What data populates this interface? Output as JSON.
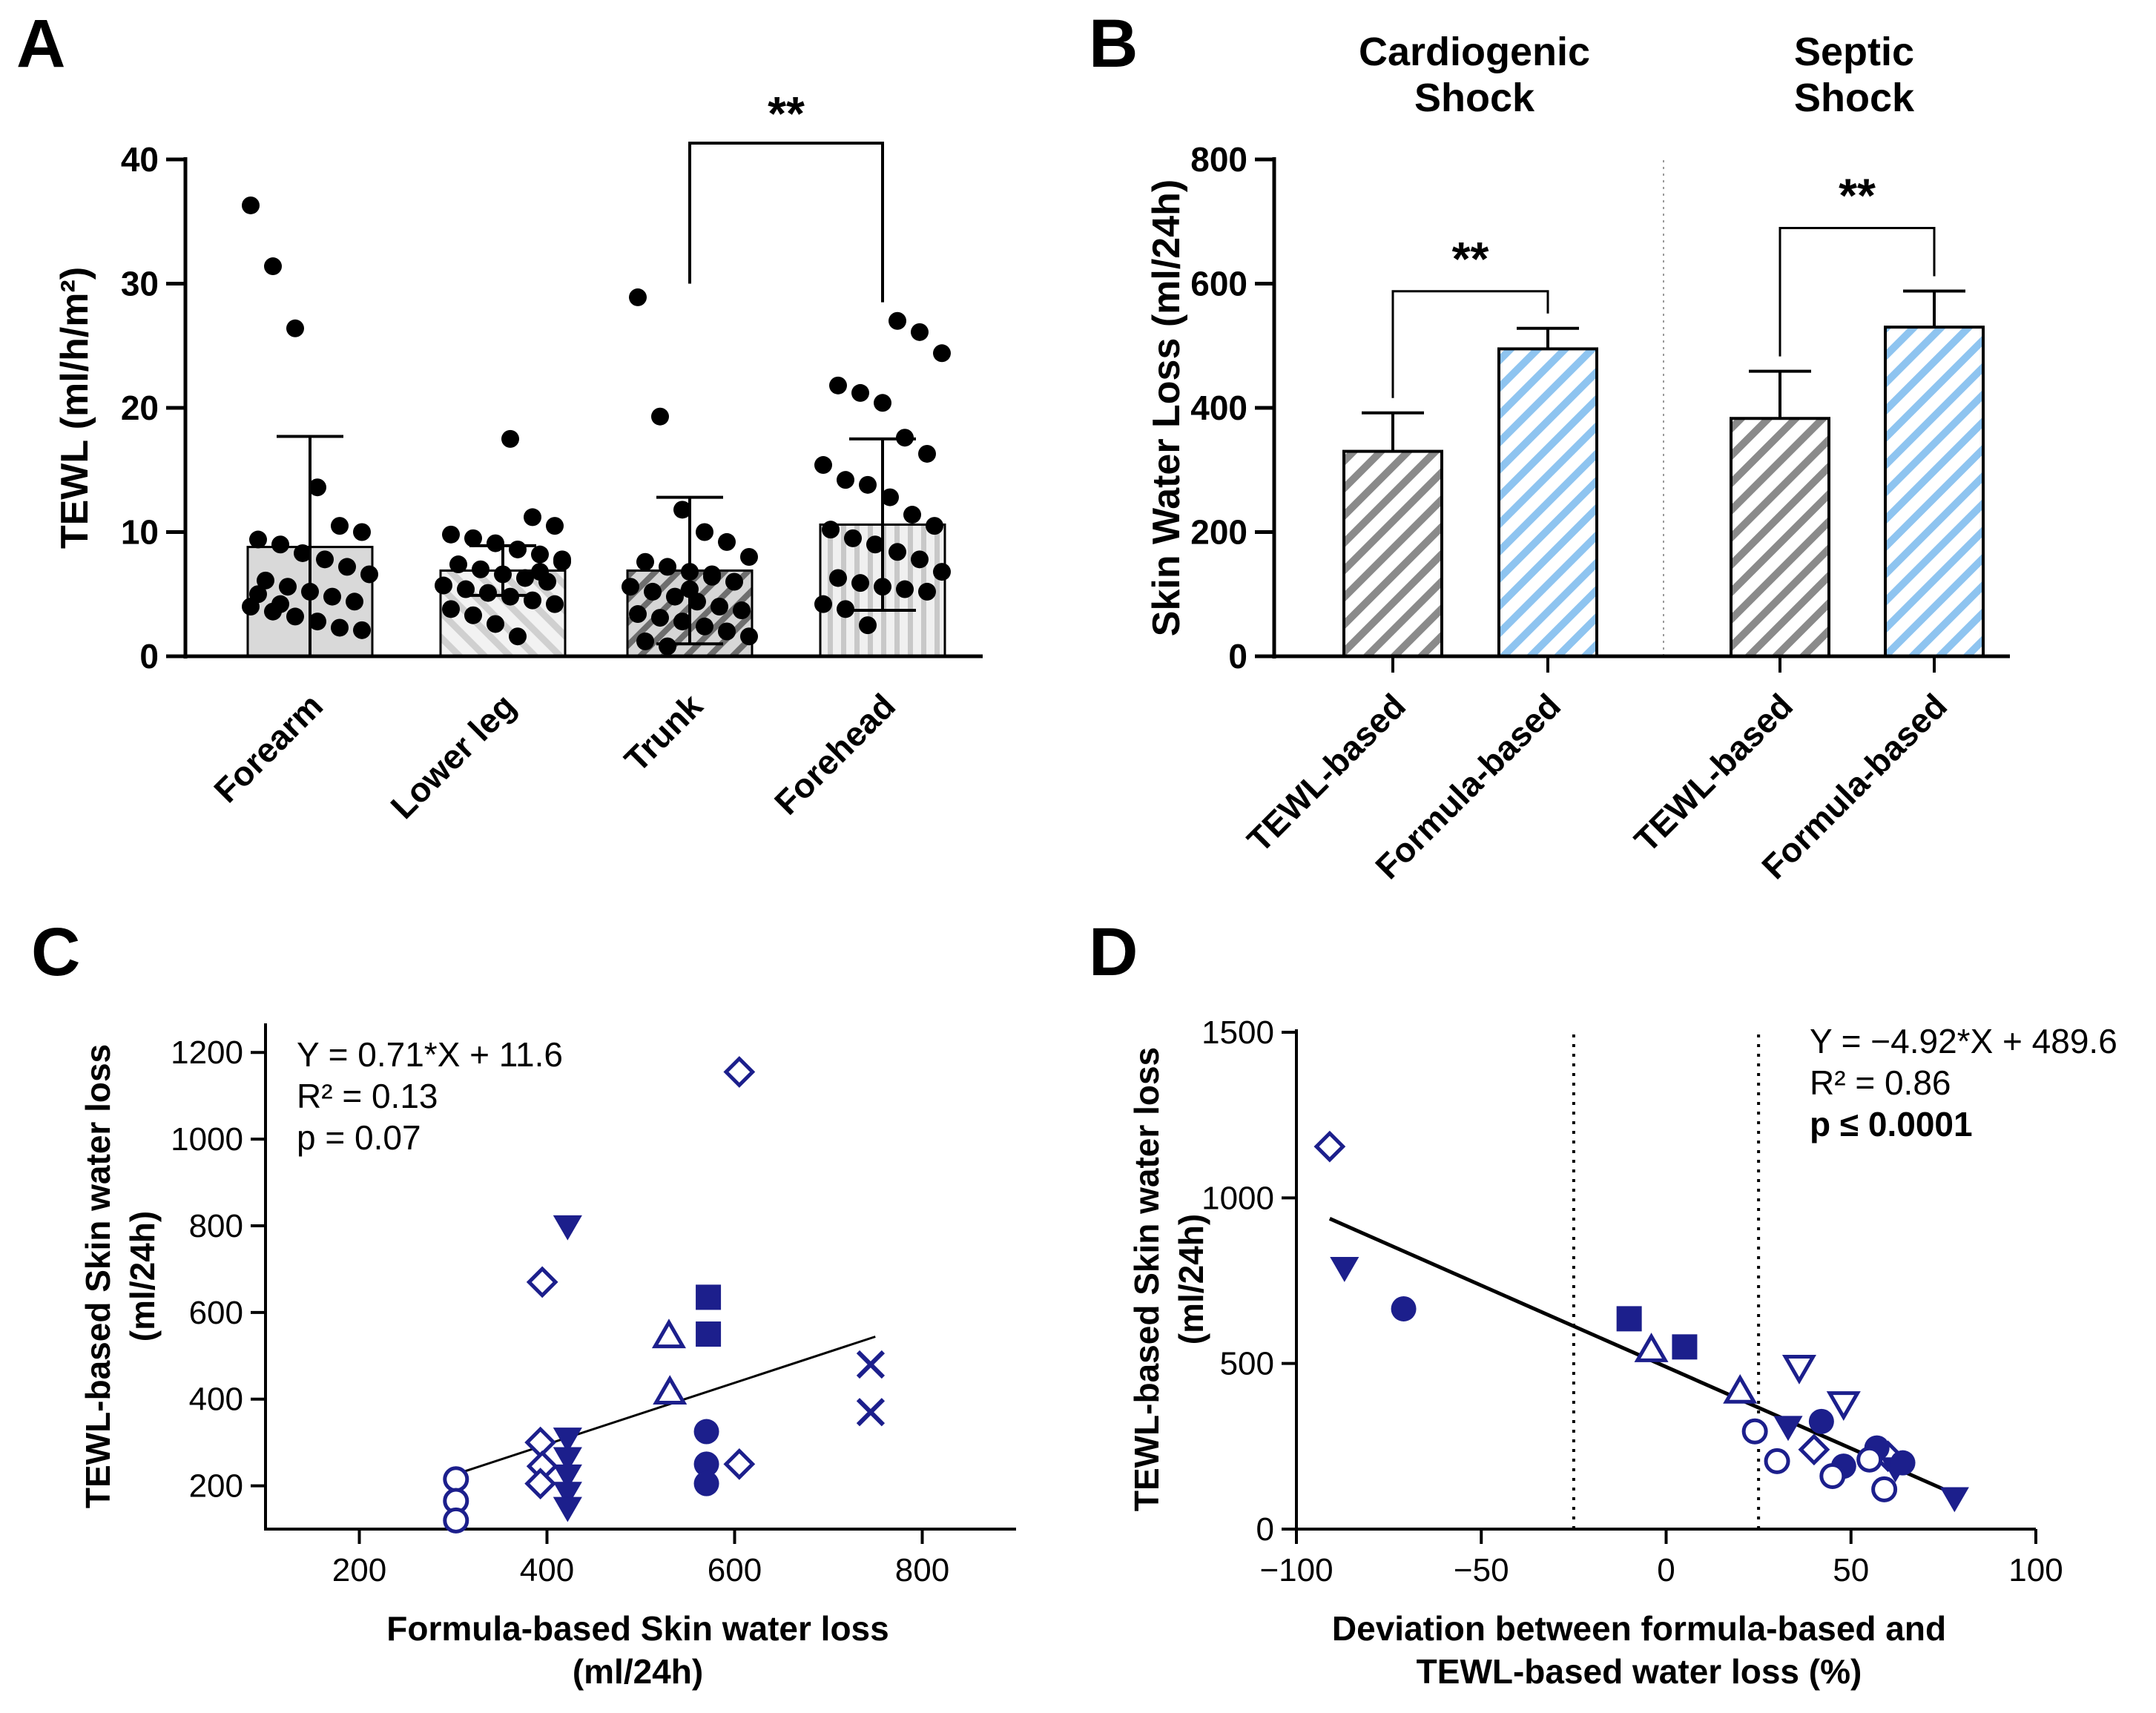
{
  "colors": {
    "axis": "#000000",
    "dot": "#000000",
    "barFillGray": "#d9d9d9",
    "hatchGray": "#888888",
    "hatchBlue": "#8ec4f0",
    "navy": "#1c1f8c",
    "divider": "#9a9a9a"
  },
  "chart_data": [
    {
      "panel": "A",
      "type": "bar",
      "ylabel": "TEWL (ml/h/m²)",
      "ylim": [
        0,
        40
      ],
      "yticks": [
        0,
        10,
        20,
        30,
        40
      ],
      "categories": [
        "Forearm",
        "Lower leg",
        "Trunk",
        "Forehead"
      ],
      "means": [
        8.8,
        6.9,
        6.9,
        10.6
      ],
      "sd": [
        8.9,
        2.0,
        5.9,
        6.9
      ],
      "points": [
        [
          36.3,
          31.4,
          26.4,
          13.6,
          10.5,
          10.0,
          9.4,
          9.0,
          8.3,
          7.8,
          7.2,
          6.6,
          6.1,
          5.6,
          5.2,
          4.8,
          4.4,
          4.0,
          3.6,
          3.2,
          2.8,
          2.3,
          2.1,
          5.0,
          4.2
        ],
        [
          17.5,
          11.2,
          10.5,
          9.8,
          9.5,
          9.1,
          8.6,
          8.2,
          7.8,
          7.4,
          7.0,
          6.6,
          6.3,
          6.0,
          5.7,
          5.4,
          5.1,
          4.8,
          4.5,
          4.2,
          3.8,
          3.3,
          2.6,
          1.6,
          6.8,
          7.6
        ],
        [
          28.9,
          19.3,
          11.8,
          10.0,
          9.2,
          8.0,
          7.6,
          7.2,
          6.8,
          6.4,
          6.0,
          5.6,
          5.2,
          4.8,
          4.4,
          4.0,
          3.7,
          3.4,
          3.1,
          2.8,
          2.4,
          2.0,
          1.6,
          1.2,
          0.8,
          5.4,
          6.6
        ],
        [
          27.0,
          26.1,
          24.4,
          21.8,
          21.2,
          20.4,
          17.6,
          16.3,
          15.4,
          14.2,
          13.8,
          12.8,
          11.4,
          10.5,
          10.2,
          9.5,
          9.0,
          8.4,
          7.8,
          6.8,
          6.3,
          5.9,
          5.6,
          5.4,
          5.2,
          4.2,
          3.8,
          2.5
        ]
      ],
      "comparisons": [
        {
          "from": "Trunk",
          "to": "Forehead",
          "label": "**"
        }
      ]
    },
    {
      "panel": "B",
      "type": "bar",
      "ylabel": "Skin Water Loss (ml/24h)",
      "ylim": [
        0,
        800
      ],
      "yticks": [
        0,
        200,
        400,
        600,
        800
      ],
      "groups": [
        {
          "title": [
            "Cardiogenic",
            "Shock"
          ],
          "categories": [
            "TEWL-based",
            "Formula-based"
          ],
          "values": [
            330,
            495
          ],
          "errors": [
            62,
            33
          ],
          "sig": "**"
        },
        {
          "title": [
            "Septic",
            "Shock"
          ],
          "categories": [
            "TEWL-based",
            "Formula-based"
          ],
          "values": [
            383,
            530
          ],
          "errors": [
            76,
            58
          ],
          "sig": "**"
        }
      ]
    },
    {
      "panel": "C",
      "type": "scatter",
      "xlabel": [
        "Formula-based Skin water loss",
        "(ml/24h)"
      ],
      "ylabel": [
        "TEWL-based Skin water loss",
        "(ml/24h)"
      ],
      "xlim": [
        100,
        900
      ],
      "ylim": [
        100,
        1250
      ],
      "xticks": [
        200,
        400,
        600,
        800
      ],
      "yticks": [
        200,
        400,
        600,
        800,
        1000,
        1200
      ],
      "annotation": [
        "Y  = 0.71*X + 11.6",
        "R² = 0.13",
        "p   = 0.07"
      ],
      "fit": {
        "slope": 0.71,
        "intercept": 11.6,
        "x_range": [
          300,
          750
        ]
      },
      "series": [
        {
          "marker": "circle-open",
          "points": [
            [
              303,
              215
            ],
            [
              303,
              165
            ],
            [
              303,
              120
            ]
          ]
        },
        {
          "marker": "diamond-open",
          "points": [
            [
              605,
              1155
            ],
            [
              395,
              670
            ],
            [
              393,
              300
            ],
            [
              395,
              245
            ],
            [
              393,
              205
            ],
            [
              605,
              250
            ]
          ]
        },
        {
          "marker": "triangle-down",
          "points": [
            [
              422,
              800
            ],
            [
              422,
              310
            ],
            [
              422,
              265
            ],
            [
              422,
              225
            ],
            [
              422,
              185
            ],
            [
              422,
              150
            ]
          ]
        },
        {
          "marker": "triangle-up-open",
          "points": [
            [
              530,
              545
            ],
            [
              531,
              415
            ]
          ]
        },
        {
          "marker": "square",
          "points": [
            [
              572,
              635
            ],
            [
              572,
              550
            ]
          ]
        },
        {
          "marker": "circle",
          "points": [
            [
              570,
              325
            ],
            [
              570,
              250
            ],
            [
              570,
              205
            ]
          ]
        },
        {
          "marker": "x",
          "points": [
            [
              745,
              480
            ],
            [
              745,
              370
            ]
          ]
        }
      ]
    },
    {
      "panel": "D",
      "type": "scatter",
      "xlabel": [
        "Deviation between formula-based and",
        "TEWL-based water loss (%)"
      ],
      "ylabel": [
        "TEWL-based Skin water loss",
        "(ml/24h)"
      ],
      "xlim": [
        -100,
        100
      ],
      "ylim": [
        0,
        1500
      ],
      "xticks": [
        -100,
        -50,
        0,
        50,
        100
      ],
      "xtick_labels": [
        "−100",
        "−50",
        "0",
        "50",
        "100"
      ],
      "yticks": [
        0,
        500,
        1000,
        1500
      ],
      "reference_lines_x": [
        -25,
        25
      ],
      "annotation": [
        "Y = −4.92*X + 489.6",
        "R² = 0.86",
        "p ≤ 0.0001"
      ],
      "fit": {
        "slope": -4.92,
        "intercept": 489.6,
        "x_range": [
          -91,
          80
        ]
      },
      "series": [
        {
          "marker": "diamond-open",
          "points": [
            [
              -91,
              1155
            ],
            [
              40,
              240
            ],
            [
              60,
              220
            ]
          ]
        },
        {
          "marker": "triangle-down",
          "points": [
            [
              -87,
              790
            ],
            [
              33,
              310
            ],
            [
              62,
              185
            ],
            [
              78,
              95
            ]
          ]
        },
        {
          "marker": "circle",
          "points": [
            [
              -71,
              665
            ],
            [
              42,
              325
            ],
            [
              57,
              245
            ],
            [
              64,
              200
            ],
            [
              48,
              190
            ]
          ]
        },
        {
          "marker": "square",
          "points": [
            [
              -10,
              635
            ],
            [
              5,
              550
            ]
          ]
        },
        {
          "marker": "triangle-up-open",
          "points": [
            [
              -4,
              540
            ],
            [
              20,
              415
            ]
          ]
        },
        {
          "marker": "triangle-down-open",
          "points": [
            [
              36,
              490
            ],
            [
              48,
              380
            ]
          ]
        },
        {
          "marker": "circle-open",
          "points": [
            [
              30,
              205
            ],
            [
              45,
              160
            ],
            [
              59,
              120
            ],
            [
              55,
              210
            ],
            [
              24,
              295
            ]
          ]
        }
      ]
    }
  ],
  "labels": {
    "A": "A",
    "B": "B",
    "C": "C",
    "D": "D"
  }
}
